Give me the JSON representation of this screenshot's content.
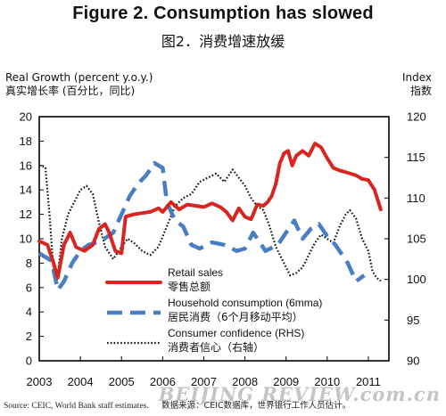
{
  "header": {
    "title": "Figure 2. Consumption has slowed",
    "subtitle": "图2．消费增速放缓"
  },
  "axes": {
    "left_label_en": "Real Growth (percent y.o.y.)",
    "left_label_cn": "真实增长率 (百分比，同比)",
    "right_label_en": "Index",
    "right_label_cn": "指数"
  },
  "footer": {
    "source_en": "Source: CEIC, World Bank staff estimates.",
    "source_cn": "数据来源：CEIC数据库，世界银行工作人员估计。"
  },
  "watermark": "BEIJING REVIEW.com.cn",
  "chart_data": {
    "type": "line",
    "title": "Figure 2. Consumption has slowed",
    "ylabel": "Real Growth (percent y.o.y.)",
    "y2label": "Index",
    "xlim": [
      2003.0,
      2011.5
    ],
    "ylim": [
      0,
      20
    ],
    "y2lim": [
      90,
      120
    ],
    "x_ticks": [
      "2003",
      "2004",
      "2005",
      "2006",
      "2007",
      "2008",
      "2009",
      "2010",
      "2011"
    ],
    "y_ticks": [
      0,
      2,
      4,
      6,
      8,
      10,
      12,
      14,
      16,
      18,
      20
    ],
    "y2_ticks": [
      90,
      95,
      100,
      105,
      110,
      115,
      120
    ],
    "legend_position": "bottom-center",
    "series": [
      {
        "name": "Retail sales",
        "name_cn": "零售总额",
        "axis": "left",
        "color": "#d8251f",
        "style": "solid",
        "x": [
          2003.0,
          2003.2,
          2003.35,
          2003.45,
          2003.6,
          2003.75,
          2003.9,
          2004.1,
          2004.3,
          2004.45,
          2004.6,
          2004.7,
          2004.85,
          2005.0,
          2005.1,
          2005.3,
          2005.5,
          2005.7,
          2005.9,
          2006.0,
          2006.2,
          2006.4,
          2006.6,
          2006.8,
          2007.0,
          2007.2,
          2007.4,
          2007.55,
          2007.7,
          2007.85,
          2008.0,
          2008.15,
          2008.3,
          2008.45,
          2008.55,
          2008.65,
          2008.75,
          2008.85,
          2008.95,
          2009.05,
          2009.15,
          2009.25,
          2009.4,
          2009.55,
          2009.7,
          2009.85,
          2010.0,
          2010.15,
          2010.3,
          2010.5,
          2010.7,
          2010.85,
          2011.0,
          2011.15,
          2011.3
        ],
        "y": [
          9.8,
          9.5,
          8.0,
          6.8,
          9.5,
          10.5,
          9.3,
          9.0,
          9.5,
          10.8,
          11.2,
          10.5,
          9.0,
          8.8,
          11.8,
          12.0,
          12.1,
          12.2,
          12.5,
          12.2,
          13.0,
          12.4,
          12.8,
          12.7,
          12.6,
          12.9,
          12.6,
          12.2,
          11.5,
          12.5,
          11.8,
          11.6,
          12.8,
          12.7,
          13.0,
          13.5,
          14.5,
          16.2,
          17.0,
          17.2,
          16.0,
          16.8,
          17.2,
          16.8,
          17.8,
          17.5,
          16.6,
          15.8,
          15.6,
          15.4,
          15.2,
          14.9,
          14.8,
          14.0,
          12.4
        ]
      },
      {
        "name": "Household consumption (6mma)",
        "name_cn": "居民消费（6个月移动平均）",
        "axis": "left",
        "color": "#4a7ec2",
        "style": "dashed",
        "x": [
          2003.0,
          2003.3,
          2003.45,
          2003.6,
          2003.8,
          2004.0,
          2004.2,
          2004.5,
          2004.8,
          2005.0,
          2005.2,
          2005.4,
          2005.6,
          2005.8,
          2006.0,
          2006.1,
          2006.3,
          2006.5,
          2006.7,
          2006.9,
          2007.2,
          2007.5,
          2007.8,
          2008.0,
          2008.2,
          2008.5,
          2008.8,
          2009.0,
          2009.2,
          2009.4,
          2009.6,
          2009.8,
          2010.0,
          2010.2,
          2010.5,
          2010.7,
          2010.9
        ],
        "y": [
          8.8,
          8.2,
          5.8,
          6.5,
          8.0,
          9.0,
          9.5,
          9.8,
          10.5,
          12.0,
          13.5,
          14.5,
          15.2,
          16.2,
          15.8,
          13.0,
          11.5,
          11.0,
          9.5,
          9.2,
          9.7,
          9.5,
          9.0,
          9.2,
          10.5,
          9.0,
          9.5,
          10.5,
          11.5,
          10.0,
          10.8,
          11.2,
          10.2,
          9.5,
          8.0,
          6.5,
          7.0
        ]
      },
      {
        "name": "Consumer confidence (RHS)",
        "name_cn": "消费者信心（右轴）",
        "axis": "right",
        "color": "#111111",
        "style": "dotted",
        "x": [
          2003.0,
          2003.15,
          2003.25,
          2003.35,
          2003.45,
          2003.55,
          2003.7,
          2003.85,
          2004.0,
          2004.15,
          2004.3,
          2004.45,
          2004.6,
          2004.8,
          2005.0,
          2005.15,
          2005.3,
          2005.5,
          2005.7,
          2005.9,
          2006.1,
          2006.3,
          2006.5,
          2006.7,
          2006.9,
          2007.1,
          2007.3,
          2007.5,
          2007.7,
          2007.85,
          2008.0,
          2008.15,
          2008.3,
          2008.45,
          2008.6,
          2008.75,
          2008.9,
          2009.0,
          2009.1,
          2009.25,
          2009.4,
          2009.55,
          2009.7,
          2009.85,
          2010.0,
          2010.15,
          2010.3,
          2010.45,
          2010.55,
          2010.7,
          2010.85,
          2011.0,
          2011.1,
          2011.2,
          2011.3
        ],
        "y": [
          114.0,
          113.8,
          108.0,
          101.0,
          100.5,
          105.0,
          108.0,
          109.5,
          111.0,
          111.5,
          110.5,
          107.0,
          104.0,
          102.5,
          104.0,
          105.0,
          104.5,
          103.5,
          103.0,
          104.0,
          106.5,
          109.0,
          110.0,
          110.5,
          112.0,
          112.5,
          113.0,
          112.0,
          113.5,
          112.5,
          111.5,
          110.0,
          109.0,
          108.5,
          106.5,
          104.0,
          102.5,
          101.5,
          100.5,
          100.8,
          101.5,
          103.0,
          104.5,
          105.5,
          105.0,
          104.5,
          106.5,
          108.0,
          108.5,
          107.5,
          105.0,
          103.5,
          101.0,
          100.2,
          99.8
        ]
      }
    ]
  }
}
